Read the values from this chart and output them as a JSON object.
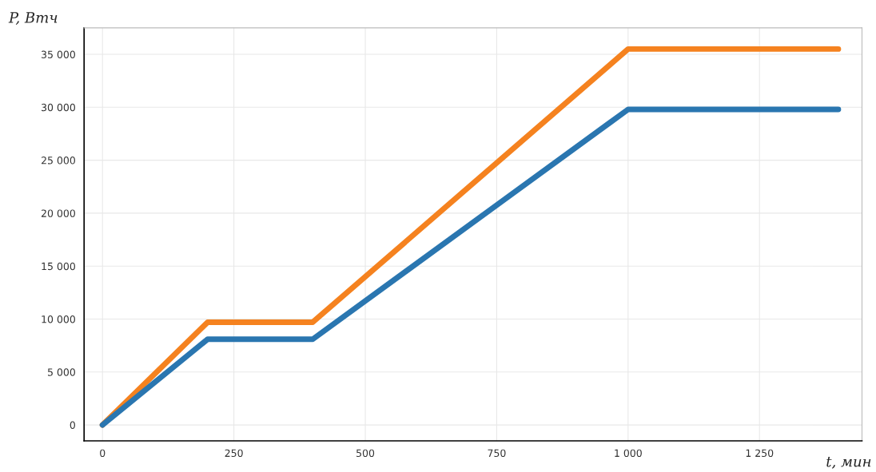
{
  "chart_data": {
    "type": "line",
    "xlabel": "t, мин",
    "ylabel": "P, Втч",
    "x": [
      0,
      200,
      400,
      1000,
      1400
    ],
    "series": [
      {
        "color": "#f5821f",
        "values": [
          0,
          9700,
          9700,
          35500,
          35500
        ]
      },
      {
        "color": "#2a76b0",
        "values": [
          0,
          8100,
          8100,
          29800,
          29800
        ]
      }
    ],
    "xlim": [
      -35,
      1445
    ],
    "ylim": [
      -1500,
      37500
    ],
    "xticks": [
      0,
      250,
      500,
      750,
      {
        "value": 1000,
        "label": "1 000"
      },
      {
        "value": 1250,
        "label": "1 250"
      }
    ],
    "yticks": [
      0,
      {
        "value": 5000,
        "label": "5 000"
      },
      {
        "value": 10000,
        "label": "10 000"
      },
      {
        "value": 15000,
        "label": "15 000"
      },
      {
        "value": 20000,
        "label": "20 000"
      },
      {
        "value": 25000,
        "label": "25 000"
      },
      {
        "value": 30000,
        "label": "30 000"
      },
      {
        "value": 35000,
        "label": "35 000"
      }
    ],
    "grid": true,
    "marker": "none",
    "line_style": "solid",
    "legend": false
  }
}
